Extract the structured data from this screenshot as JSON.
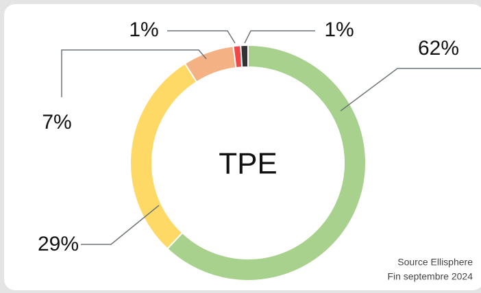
{
  "chart_data": {
    "type": "donut",
    "center_label": "TPE",
    "values": [
      62,
      29,
      7,
      1,
      1
    ],
    "value_labels": [
      "62%",
      "29%",
      "7%",
      "1%",
      "1%"
    ],
    "colors": [
      "#a8d18d",
      "#ffd966",
      "#f4b183",
      "#f04848",
      "#333333"
    ],
    "source": [
      "Source Ellisphere",
      "Fin septembre 2024"
    ]
  }
}
